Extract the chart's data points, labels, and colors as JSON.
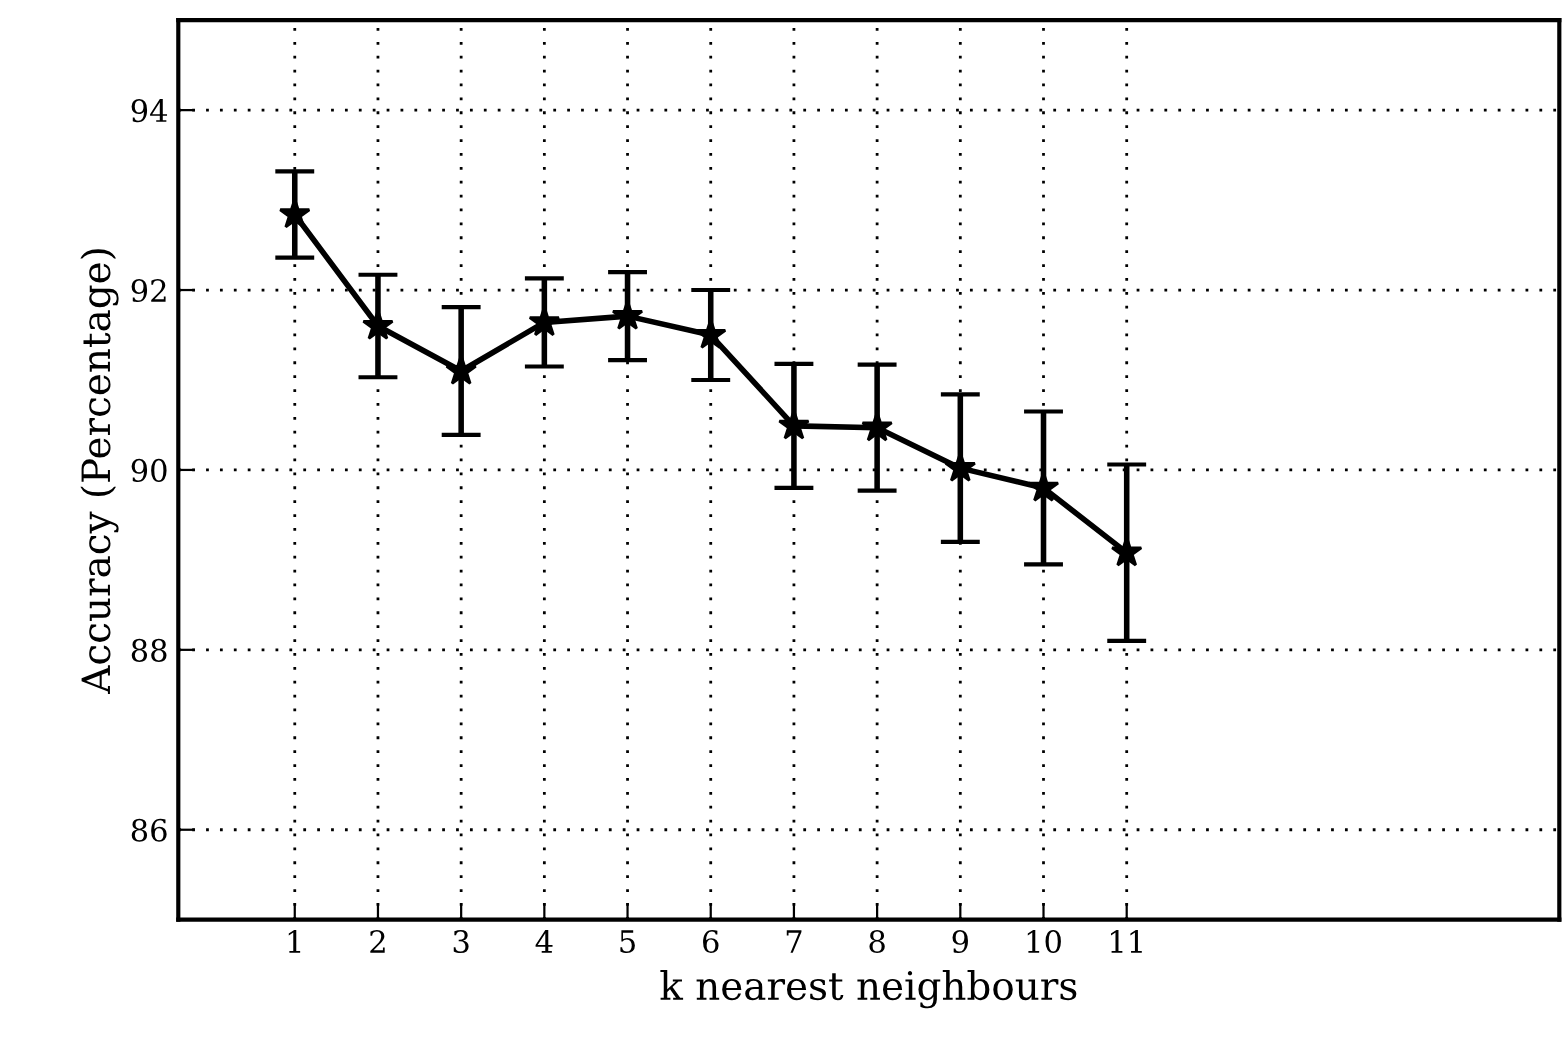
{
  "chart_data": {
    "type": "line",
    "xlabel": "k nearest neighbours",
    "ylabel": "Accuracy (Percentage)",
    "x": [
      1,
      2,
      3,
      4,
      5,
      6,
      7,
      8,
      9,
      10,
      11
    ],
    "values": [
      92.84,
      91.6,
      91.1,
      91.64,
      91.71,
      91.5,
      90.49,
      90.47,
      90.02,
      89.8,
      89.08
    ],
    "errors": [
      0.48,
      0.57,
      0.71,
      0.49,
      0.49,
      0.5,
      0.69,
      0.7,
      0.82,
      0.85,
      0.98
    ],
    "color": "#000000",
    "marker": "star",
    "line_style": "solid",
    "grid": true,
    "xlim": [
      -0.4,
      16.2
    ],
    "xticks": [
      1,
      2,
      3,
      4,
      5,
      6,
      7,
      8,
      9,
      10,
      11
    ],
    "ylim": [
      85,
      95
    ],
    "yticks": [
      86,
      88,
      90,
      92,
      94
    ]
  }
}
